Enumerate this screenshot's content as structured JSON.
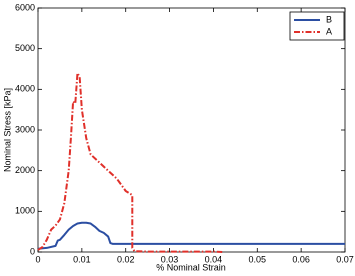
{
  "chart_data": {
    "type": "line",
    "x_label": "% Nominal Strain",
    "y_label": "Nominal Stress [kPa]",
    "xlim": [
      0,
      0.07
    ],
    "xticks": [
      0,
      0.01,
      0.02,
      0.03,
      0.04,
      0.05,
      0.06,
      0.07
    ],
    "ylim": [
      0,
      6000
    ],
    "yticks": [
      0,
      1000,
      2000,
      3000,
      4000,
      5000,
      6000
    ],
    "legend": "upper-right",
    "series": [
      {
        "name": "B",
        "color": "#2b4ea2",
        "linestyle": "solid",
        "x": [
          0,
          0.002,
          0.004,
          0.0045,
          0.005,
          0.006,
          0.007,
          0.008,
          0.009,
          0.01,
          0.011,
          0.012,
          0.013,
          0.014,
          0.015,
          0.016,
          0.0165,
          0.017,
          0.07
        ],
        "values": [
          80,
          100,
          150,
          280,
          300,
          420,
          550,
          640,
          700,
          720,
          720,
          700,
          620,
          520,
          470,
          380,
          220,
          200,
          200
        ]
      },
      {
        "name": "A",
        "color": "#e0302a",
        "linestyle": "dashdot",
        "x": [
          0,
          0.001,
          0.002,
          0.003,
          0.004,
          0.005,
          0.006,
          0.007,
          0.0075,
          0.008,
          0.0085,
          0.009,
          0.0095,
          0.01,
          0.011,
          0.012,
          0.014,
          0.016,
          0.018,
          0.02,
          0.0215,
          0.0215,
          0.022,
          0.025,
          0.03,
          0.035,
          0.04,
          0.042
        ],
        "values": [
          50,
          120,
          300,
          550,
          650,
          800,
          1200,
          2000,
          2800,
          3700,
          3650,
          4400,
          4300,
          3500,
          2800,
          2400,
          2200,
          2000,
          1800,
          1500,
          1400,
          100,
          20,
          10,
          10,
          10,
          10,
          0
        ]
      }
    ]
  }
}
